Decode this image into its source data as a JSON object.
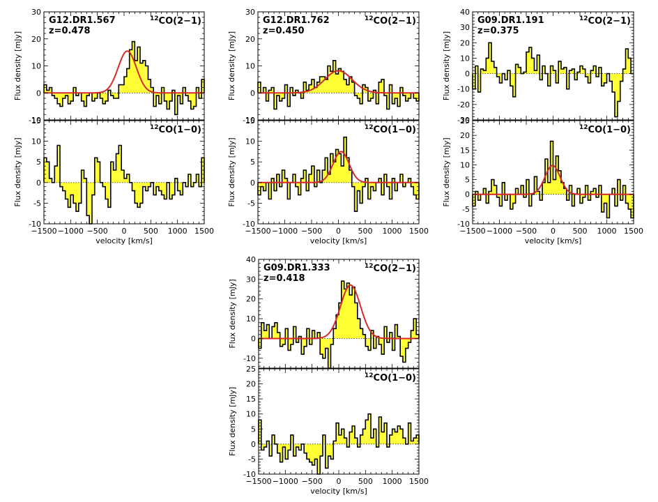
{
  "chart_data": [
    {
      "type": "histogram-line",
      "source": "G12.DR1.567",
      "redshift": "z=0.478",
      "line": "CO(2−1)",
      "isotope": "12",
      "ylabel": "Flux density [mJy]",
      "xlabel": "",
      "xlim": [
        -1500,
        1500
      ],
      "ylim": [
        -10,
        30
      ],
      "yticks": [
        -10,
        0,
        10,
        20,
        30
      ],
      "xticks": [
        -1500,
        -1000,
        -500,
        0,
        500,
        1000,
        1500
      ],
      "x_start": -1500,
      "x_step": 50,
      "values": [
        3,
        1,
        2,
        -1,
        -2,
        -4,
        -5,
        -2,
        -1,
        -4,
        -3,
        2,
        -1,
        0,
        -3,
        -5,
        -1,
        0,
        -3,
        -2,
        0,
        -2,
        -4,
        -3,
        1,
        -1,
        -2,
        -2,
        3,
        3,
        6,
        9,
        16,
        19,
        12,
        17,
        11,
        12,
        10,
        5,
        2,
        -5,
        -1,
        -4,
        2,
        -3,
        -6,
        -3,
        1,
        -8,
        -1,
        -4,
        2,
        -1,
        -3,
        -6,
        -5,
        2,
        -2,
        5
      ],
      "fit": {
        "amplitude": 15.5,
        "center": 60,
        "fwhm": 400
      }
    },
    {
      "type": "histogram-line",
      "source": "",
      "redshift": "",
      "line": "CO(1−0)",
      "isotope": "12",
      "ylabel": "Flux density [mJy]",
      "xlabel": "velocity [km/s]",
      "xlim": [
        -1500,
        1500
      ],
      "ylim": [
        -10,
        15
      ],
      "yticks": [
        -10,
        -5,
        0,
        5,
        10,
        15
      ],
      "xticks": [
        -1500,
        -1000,
        -500,
        0,
        500,
        1000,
        1500
      ],
      "x_start": -1500,
      "x_step": 50,
      "values": [
        6,
        5,
        1,
        0,
        4,
        9,
        -1,
        -2,
        -4,
        -6,
        -3,
        -5,
        -7,
        -5,
        3,
        1,
        -8,
        -10,
        -3,
        6,
        5,
        0,
        -1,
        -4,
        -6,
        5,
        3,
        7,
        9,
        3,
        1,
        2,
        0,
        -2,
        -5,
        -6,
        -5,
        -1,
        -2,
        -1,
        0,
        -3,
        -1,
        -2,
        -3,
        -4,
        0,
        -4,
        -3,
        1,
        -2,
        -3,
        0,
        -1,
        2,
        -1,
        0,
        2,
        -1,
        6
      ],
      "fit": null
    },
    {
      "type": "histogram-line",
      "source": "G12.DR1.762",
      "redshift": "z=0.450",
      "line": "CO(2−1)",
      "isotope": "12",
      "ylabel": "Flux density [mJy]",
      "xlabel": "",
      "xlim": [
        -1500,
        1500
      ],
      "ylim": [
        -10,
        30
      ],
      "yticks": [
        -10,
        0,
        10,
        20,
        30
      ],
      "xticks": [
        -1500,
        -1000,
        -500,
        0,
        500,
        1000,
        1500
      ],
      "x_start": -1500,
      "x_step": 50,
      "values": [
        4,
        0,
        2,
        -3,
        1,
        2,
        -6,
        -1,
        -3,
        -2,
        3,
        -5,
        2,
        -1,
        1,
        0,
        -2,
        4,
        1,
        3,
        5,
        2,
        4,
        6,
        6,
        5,
        10,
        8,
        12,
        7,
        9,
        8,
        5,
        3,
        6,
        4,
        -1,
        -2,
        -4,
        3,
        2,
        -3,
        -2,
        1,
        -4,
        4,
        5,
        -1,
        -6,
        3,
        -4,
        -2,
        -5,
        2,
        -1,
        -3,
        -2,
        0,
        -2,
        -3
      ],
      "fit": {
        "amplitude": 8.2,
        "center": 0,
        "fwhm": 600
      }
    },
    {
      "type": "histogram-line",
      "source": "",
      "redshift": "",
      "line": "CO(1−0)",
      "isotope": "12",
      "ylabel": "Flux density [mJy]",
      "xlabel": "velocity [km/s]",
      "xlim": [
        -1500,
        1500
      ],
      "ylim": [
        -10,
        15
      ],
      "yticks": [
        -10,
        -5,
        0,
        5,
        10,
        15
      ],
      "xticks": [
        -1500,
        -1000,
        -500,
        0,
        500,
        1000,
        1500
      ],
      "x_start": -1500,
      "x_step": 50,
      "values": [
        -3,
        -1,
        -2,
        0,
        -4,
        1,
        -2,
        2,
        -1,
        3,
        1,
        -4,
        0,
        2,
        -1,
        -3,
        1,
        3,
        -2,
        2,
        4,
        -1,
        3,
        0,
        3,
        6,
        2,
        7,
        5,
        8,
        7,
        4,
        11,
        6,
        3,
        -1,
        -7,
        -2,
        -5,
        -1,
        1,
        -4,
        -1,
        -2,
        0,
        1,
        -3,
        2,
        -1,
        -4,
        1,
        -2,
        0,
        2,
        -1,
        0,
        1,
        -1,
        -3,
        -4
      ],
      "fit": {
        "amplitude": 7.5,
        "center": 50,
        "fwhm": 350
      }
    },
    {
      "type": "histogram-line",
      "source": "G09.DR1.191",
      "redshift": "z=0.375",
      "line": "CO(2−1)",
      "isotope": "12",
      "ylabel": "Flux density [mJy]",
      "xlabel": "",
      "xlim": [
        -1500,
        1500
      ],
      "ylim": [
        -30,
        40
      ],
      "yticks": [
        -30,
        -20,
        -10,
        0,
        10,
        20,
        30,
        40
      ],
      "xticks": [
        -1500,
        -1000,
        -500,
        0,
        500,
        1000,
        1500
      ],
      "x_start": -1500,
      "x_step": 50,
      "values": [
        -10,
        5,
        -12,
        3,
        2,
        10,
        20,
        8,
        4,
        -2,
        -6,
        0,
        -4,
        2,
        -8,
        -15,
        6,
        4,
        0,
        1,
        14,
        17,
        10,
        2,
        12,
        -4,
        5,
        0,
        -8,
        5,
        2,
        -6,
        8,
        3,
        4,
        -10,
        2,
        3,
        -4,
        1,
        5,
        3,
        -2,
        -6,
        2,
        5,
        -2,
        4,
        -8,
        -6,
        0,
        -5,
        -12,
        -28,
        -18,
        -5,
        3,
        16,
        10,
        0
      ],
      "fit": null
    },
    {
      "type": "histogram-line",
      "source": "",
      "redshift": "",
      "line": "CO(1−0)",
      "isotope": "12",
      "ylabel": "Flux density [mJy]",
      "xlabel": "velocity [km/s]",
      "xlim": [
        -1500,
        1500
      ],
      "ylim": [
        -10,
        25
      ],
      "yticks": [
        -10,
        -5,
        0,
        5,
        10,
        15,
        20,
        25
      ],
      "xticks": [
        -1500,
        -1000,
        -500,
        0,
        500,
        1000,
        1500
      ],
      "x_start": -1500,
      "x_step": 50,
      "values": [
        -4,
        1,
        -2,
        0,
        2,
        -3,
        1,
        5,
        3,
        -1,
        -4,
        4,
        -2,
        0,
        -5,
        -3,
        2,
        0,
        3,
        -1,
        5,
        -4,
        0,
        6,
        1,
        -2,
        4,
        12,
        4,
        18,
        5,
        13,
        8,
        4,
        2,
        -2,
        3,
        -4,
        0,
        2,
        -3,
        -1,
        3,
        -2,
        1,
        2,
        -1,
        3,
        -6,
        -3,
        -8,
        0,
        2,
        -4,
        5,
        -2,
        3,
        -3,
        -5,
        -8
      ],
      "fit": {
        "amplitude": 9.8,
        "center": -10,
        "fwhm": 330
      }
    },
    {
      "type": "histogram-line",
      "source": "G09.DR1.333",
      "redshift": "z=0.418",
      "line": "CO(2−1)",
      "isotope": "12",
      "ylabel": "Flux density [mJy]",
      "xlabel": "",
      "xlim": [
        -1500,
        1500
      ],
      "ylim": [
        -15,
        40
      ],
      "yticks": [
        -10,
        0,
        10,
        20,
        30,
        40
      ],
      "xticks": [
        -1500,
        -1000,
        -500,
        0,
        500,
        1000,
        1500
      ],
      "x_start": -1500,
      "x_step": 50,
      "values": [
        -5,
        8,
        4,
        7,
        0,
        6,
        8,
        3,
        -4,
        -3,
        5,
        -6,
        -3,
        6,
        -2,
        1,
        -8,
        -4,
        5,
        -3,
        4,
        0,
        3,
        -8,
        -10,
        -5,
        -15,
        -3,
        5,
        12,
        18,
        29,
        25,
        28,
        22,
        26,
        18,
        10,
        5,
        2,
        -4,
        -6,
        4,
        -5,
        1,
        -3,
        -8,
        6,
        -2,
        3,
        -6,
        7,
        1,
        -9,
        -12,
        -5,
        -2,
        4,
        10,
        2
      ],
      "fit": {
        "amplitude": 27,
        "center": 220,
        "fwhm": 440
      }
    },
    {
      "type": "histogram-line",
      "source": "",
      "redshift": "",
      "line": "CO(1−0)",
      "isotope": "12",
      "ylabel": "Flux density [mJy]",
      "xlabel": "velocity [km/s]",
      "xlim": [
        -1500,
        1500
      ],
      "ylim": [
        -10,
        25
      ],
      "yticks": [
        -10,
        -5,
        0,
        5,
        10,
        15,
        20,
        25
      ],
      "xticks": [
        -1500,
        -1000,
        -500,
        0,
        500,
        1000,
        1500
      ],
      "x_start": -1500,
      "x_step": 50,
      "values": [
        8,
        -2,
        -1,
        1,
        -4,
        3,
        0,
        -3,
        -6,
        -1,
        -5,
        -2,
        3,
        -4,
        -1,
        -2,
        0,
        -3,
        -5,
        -6,
        -7,
        -5,
        -10,
        -4,
        3,
        -8,
        -4,
        -5,
        1,
        7,
        3,
        5,
        2,
        -1,
        4,
        6,
        2,
        -1,
        3,
        5,
        8,
        10,
        2,
        5,
        -1,
        9,
        4,
        7,
        -1,
        3,
        5,
        4,
        6,
        5,
        2,
        0,
        7,
        1,
        2,
        3
      ],
      "fit": null
    }
  ]
}
